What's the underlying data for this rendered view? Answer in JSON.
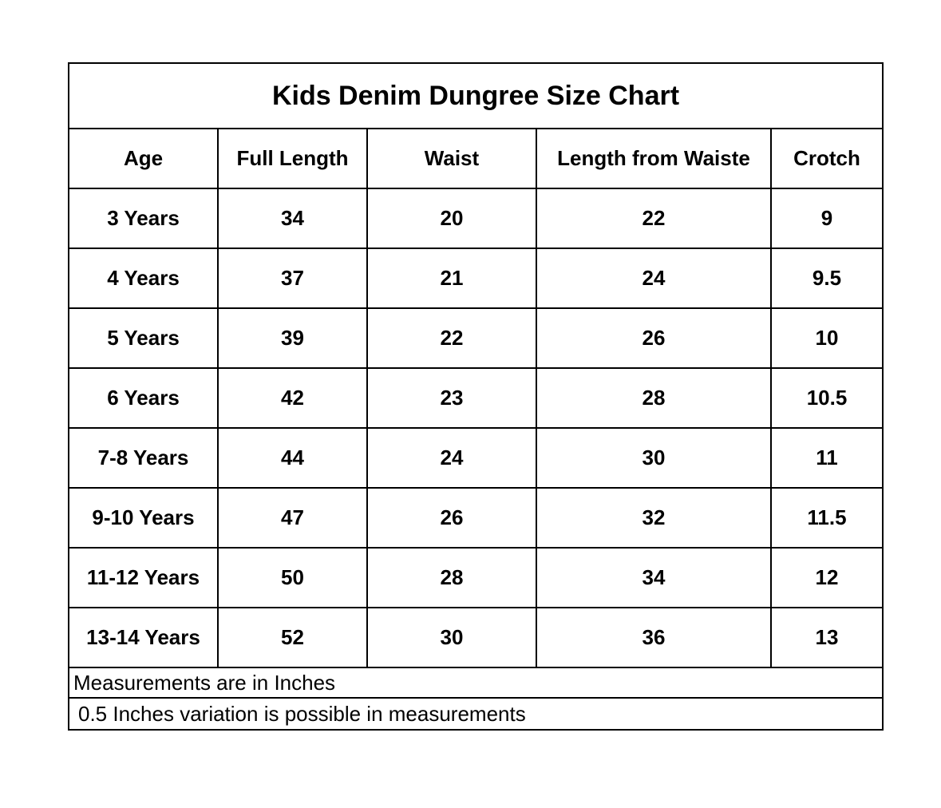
{
  "title": "Kids Denim Dungree Size Chart",
  "columns": [
    "Age",
    "Full Length",
    "Waist",
    "Length from Waiste",
    "Crotch"
  ],
  "rows": [
    [
      "3 Years",
      "34",
      "20",
      "22",
      "9"
    ],
    [
      "4 Years",
      "37",
      "21",
      "24",
      "9.5"
    ],
    [
      "5 Years",
      "39",
      "22",
      "26",
      "10"
    ],
    [
      "6 Years",
      "42",
      "23",
      "28",
      "10.5"
    ],
    [
      "7-8 Years",
      "44",
      "24",
      "30",
      "11"
    ],
    [
      "9-10 Years",
      "47",
      "26",
      "32",
      "11.5"
    ],
    [
      "11-12 Years",
      "50",
      "28",
      "34",
      "12"
    ],
    [
      "13-14 Years",
      "52",
      "30",
      "36",
      "13"
    ]
  ],
  "notes": [
    "Measurements are in Inches",
    "0.5 Inches variation is possible in measurements"
  ]
}
